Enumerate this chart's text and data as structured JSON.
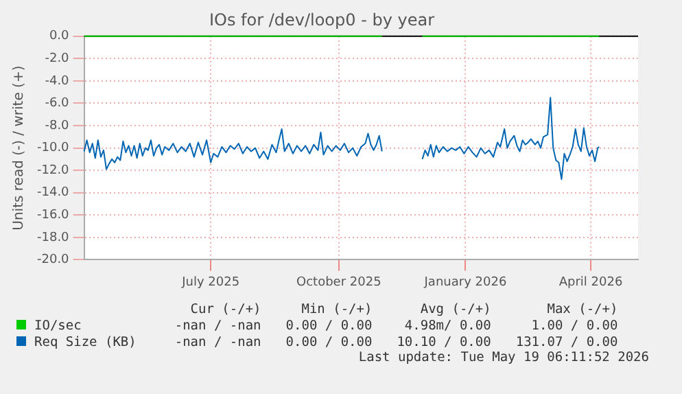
{
  "chart_data": {
    "type": "line",
    "title": "IOs for /dev/loop0 - by year",
    "ylabel": "Units read (-) / write (+)",
    "xlim": [
      "2025-04-16",
      "2026-05-19"
    ],
    "ylim": [
      -20,
      0
    ],
    "xticks": [
      {
        "value": "2025-07-16",
        "label": "July 2025"
      },
      {
        "value": "2025-10-16",
        "label": "October 2025"
      },
      {
        "value": "2026-01-15",
        "label": "January 2026"
      },
      {
        "value": "2026-04-15",
        "label": "April 2026"
      }
    ],
    "yticks": [
      {
        "value": 0,
        "label": "0.0"
      },
      {
        "value": -2,
        "label": "-2.0"
      },
      {
        "value": -4,
        "label": "-4.0"
      },
      {
        "value": -6,
        "label": "-6.0"
      },
      {
        "value": -8,
        "label": "-8.0"
      },
      {
        "value": -10,
        "label": "-10.0"
      },
      {
        "value": -12,
        "label": "-12.0"
      },
      {
        "value": -14,
        "label": "-14.0"
      },
      {
        "value": -16,
        "label": "-16.0"
      },
      {
        "value": -18,
        "label": "-18.0"
      },
      {
        "value": -20,
        "label": "-20.0"
      }
    ],
    "grid": true,
    "legend": "bottom left",
    "series": [
      {
        "name": "IO/sec",
        "color": "#00cc00",
        "x": [
          "2025-04-16",
          "2025-11-16",
          "2025-12-01",
          "2025-12-15",
          "2026-04-21"
        ],
        "values": [
          0,
          0,
          null,
          0,
          0
        ]
      },
      {
        "name": "Req Size (KB)",
        "color": "#0066b3",
        "x": [
          "2025-04-16",
          "2025-04-18",
          "2025-04-20",
          "2025-04-22",
          "2025-04-24",
          "2025-04-26",
          "2025-04-28",
          "2025-04-30",
          "2025-05-02",
          "2025-05-04",
          "2025-05-06",
          "2025-05-08",
          "2025-05-10",
          "2025-05-12",
          "2025-05-14",
          "2025-05-16",
          "2025-05-18",
          "2025-05-20",
          "2025-05-22",
          "2025-05-24",
          "2025-05-26",
          "2025-05-28",
          "2025-05-30",
          "2025-06-01",
          "2025-06-03",
          "2025-06-05",
          "2025-06-07",
          "2025-06-09",
          "2025-06-11",
          "2025-06-13",
          "2025-06-16",
          "2025-06-19",
          "2025-06-22",
          "2025-06-25",
          "2025-06-28",
          "2025-07-01",
          "2025-07-04",
          "2025-07-07",
          "2025-07-10",
          "2025-07-13",
          "2025-07-16",
          "2025-07-18",
          "2025-07-21",
          "2025-07-24",
          "2025-07-27",
          "2025-07-30",
          "2025-08-02",
          "2025-08-05",
          "2025-08-08",
          "2025-08-11",
          "2025-08-14",
          "2025-08-17",
          "2025-08-20",
          "2025-08-23",
          "2025-08-26",
          "2025-08-29",
          "2025-09-01",
          "2025-09-03",
          "2025-09-05",
          "2025-09-07",
          "2025-09-10",
          "2025-09-13",
          "2025-09-16",
          "2025-09-19",
          "2025-09-22",
          "2025-09-25",
          "2025-09-28",
          "2025-10-01",
          "2025-10-03",
          "2025-10-05",
          "2025-10-08",
          "2025-10-11",
          "2025-10-14",
          "2025-10-17",
          "2025-10-20",
          "2025-10-23",
          "2025-10-26",
          "2025-10-29",
          "2025-11-01",
          "2025-11-04",
          "2025-11-06",
          "2025-11-08",
          "2025-11-10",
          "2025-11-12",
          "2025-11-14",
          "2025-11-16",
          "2025-12-01",
          "2025-12-15",
          "2025-12-17",
          "2025-12-19",
          "2025-12-21",
          "2025-12-23",
          "2025-12-25",
          "2025-12-27",
          "2025-12-30",
          "2026-01-02",
          "2026-01-05",
          "2026-01-08",
          "2026-01-11",
          "2026-01-14",
          "2026-01-17",
          "2026-01-20",
          "2026-01-23",
          "2026-01-26",
          "2026-01-29",
          "2026-02-01",
          "2026-02-04",
          "2026-02-07",
          "2026-02-09",
          "2026-02-12",
          "2026-02-14",
          "2026-02-16",
          "2026-02-19",
          "2026-02-21",
          "2026-02-23",
          "2026-02-25",
          "2026-02-27",
          "2026-03-01",
          "2026-03-03",
          "2026-03-06",
          "2026-03-08",
          "2026-03-10",
          "2026-03-12",
          "2026-03-15",
          "2026-03-17",
          "2026-03-19",
          "2026-03-21",
          "2026-03-23",
          "2026-03-25",
          "2026-03-27",
          "2026-03-29",
          "2026-03-31",
          "2026-04-02",
          "2026-04-04",
          "2026-04-06",
          "2026-04-08",
          "2026-04-10",
          "2026-04-12",
          "2026-04-14",
          "2026-04-16",
          "2026-04-18",
          "2026-04-20",
          "2026-04-21"
        ],
        "values": [
          -10.3,
          -9.3,
          -10.4,
          -9.6,
          -10.9,
          -9.3,
          -10.8,
          -10.2,
          -11.9,
          -11.4,
          -11.0,
          -11.3,
          -10.8,
          -11.1,
          -9.4,
          -10.4,
          -9.8,
          -10.7,
          -9.8,
          -10.9,
          -9.6,
          -10.7,
          -10.0,
          -10.2,
          -9.3,
          -10.7,
          -10.0,
          -9.7,
          -10.6,
          -9.9,
          -10.2,
          -9.6,
          -10.4,
          -9.9,
          -10.3,
          -9.6,
          -10.8,
          -9.5,
          -10.6,
          -9.3,
          -11.3,
          -10.5,
          -10.8,
          -9.9,
          -10.4,
          -9.8,
          -10.1,
          -9.6,
          -10.5,
          -9.9,
          -10.3,
          -10.0,
          -10.9,
          -10.3,
          -11.0,
          -9.7,
          -10.4,
          -9.3,
          -8.3,
          -10.3,
          -9.6,
          -10.5,
          -9.8,
          -10.3,
          -9.8,
          -10.5,
          -9.7,
          -10.2,
          -8.6,
          -10.6,
          -9.8,
          -10.3,
          -9.8,
          -10.2,
          -9.6,
          -10.4,
          -10.0,
          -10.7,
          -9.9,
          -9.6,
          -8.7,
          -9.7,
          -10.2,
          -9.7,
          -8.9,
          -10.3,
          null,
          -11.0,
          -10.2,
          -10.7,
          -9.7,
          -10.8,
          -9.8,
          -10.4,
          -9.9,
          -10.3,
          -10.0,
          -10.2,
          -9.9,
          -10.5,
          -9.9,
          -10.4,
          -10.8,
          -10.0,
          -10.5,
          -10.2,
          -10.8,
          -9.5,
          -9.9,
          -8.3,
          -10.0,
          -9.4,
          -8.9,
          -9.8,
          -10.3,
          -9.3,
          -9.7,
          -9.5,
          -9.2,
          -9.7,
          -9.4,
          -10.0,
          -9.0,
          -8.8,
          -5.5,
          -10.0,
          -11.1,
          -11.3,
          -12.8,
          -10.5,
          -11.2,
          -10.6,
          -9.9,
          -8.3,
          -9.7,
          -10.3,
          -8.2,
          -9.9,
          -10.7,
          -10.2,
          -11.2,
          -10.0,
          -9.9
        ]
      }
    ],
    "annotations": [
      "Cur (-/+)",
      "Min (-/+)",
      "Avg (-/+)",
      "Max (-/+)",
      "-nan / -nan",
      "0.00 / 0.00",
      "4.98m/ 0.00",
      "1.00 / 0.00",
      "-nan / -nan",
      "0.00 / 0.00",
      "10.10 / 0.00",
      "131.07 / 0.00",
      "Last update: Tue May 19 06:11:52 2026"
    ]
  }
}
